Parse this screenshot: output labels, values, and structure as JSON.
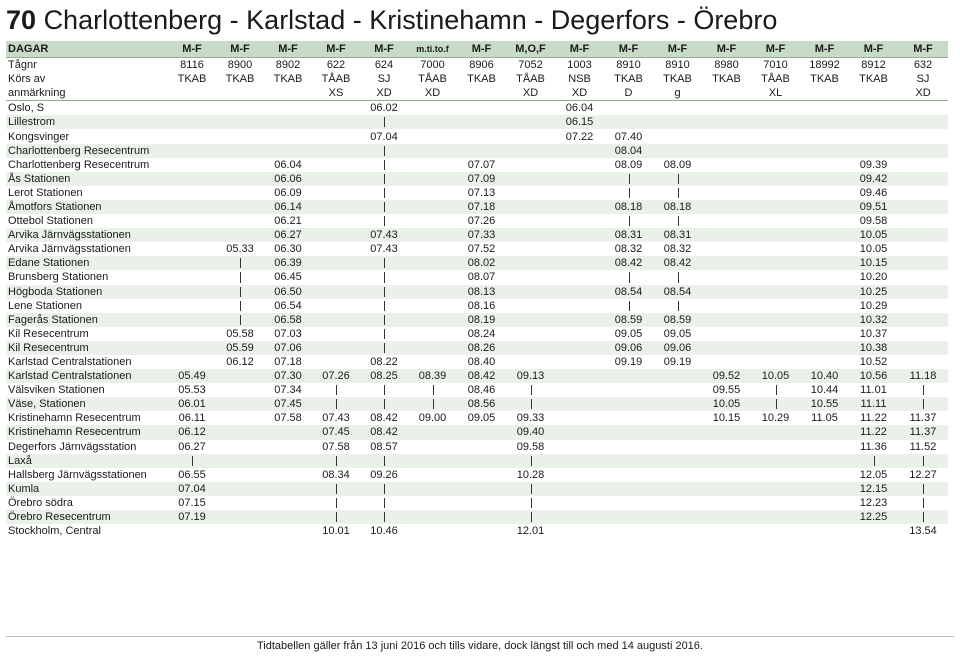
{
  "title": {
    "number": "70",
    "route": "Charlottenberg - Karlstad - Kristinehamn - Degerfors - Örebro"
  },
  "header": {
    "days_label": "DAGAR",
    "days": [
      "M-F",
      "M-F",
      "M-F",
      "M-F",
      "M-F",
      "m.ti.to.f",
      "M-F",
      "M,O,F",
      "M-F",
      "M-F",
      "M-F",
      "M-F",
      "M-F",
      "M-F",
      "M-F",
      "M-F"
    ],
    "train_label": "Tågnr",
    "trains": [
      "8116",
      "8900",
      "8902",
      "622",
      "624",
      "7000",
      "8906",
      "7052",
      "1003",
      "8910",
      "8910",
      "8980",
      "7010",
      "18992",
      "8912",
      "632"
    ],
    "operator_label": "Körs av",
    "operators": [
      "TKAB",
      "TKAB",
      "TKAB",
      "TÅAB",
      "SJ",
      "TÅAB",
      "TKAB",
      "TÅAB",
      "NSB",
      "TKAB",
      "TKAB",
      "TKAB",
      "TÅAB",
      "TKAB",
      "TKAB",
      "SJ"
    ],
    "remark_label": "anmärkning",
    "remarks": [
      "",
      "",
      "",
      "XS",
      "XD",
      "XD",
      "",
      "XD",
      "XD",
      "D",
      "g",
      "",
      "XL",
      "",
      "",
      "XD"
    ]
  },
  "stations": [
    {
      "name": "Oslo, S",
      "times": [
        "",
        "",
        "",
        "",
        "06.02",
        "",
        "",
        "",
        "06.04",
        "",
        "",
        "",
        "",
        "",
        "",
        ""
      ]
    },
    {
      "name": "Lillestrom",
      "times": [
        "",
        "",
        "",
        "",
        "|",
        "",
        "",
        "",
        "06.15",
        "",
        "",
        "",
        "",
        "",
        "",
        ""
      ]
    },
    {
      "name": "Kongsvinger",
      "times": [
        "",
        "",
        "",
        "",
        "07.04",
        "",
        "",
        "",
        "07.22",
        "07.40",
        "",
        "",
        "",
        "",
        "",
        ""
      ]
    },
    {
      "name": "Charlottenberg Resecentrum",
      "times": [
        "",
        "",
        "",
        "",
        "|",
        "",
        "",
        "",
        "",
        "08.04",
        "",
        "",
        "",
        "",
        "",
        ""
      ]
    },
    {
      "name": "Charlottenberg Resecentrum",
      "times": [
        "",
        "",
        "06.04",
        "",
        "|",
        "",
        "07.07",
        "",
        "",
        "08.09",
        "08.09",
        "",
        "",
        "",
        "09.39",
        ""
      ]
    },
    {
      "name": "Ås Stationen",
      "times": [
        "",
        "",
        "06.06",
        "",
        "|",
        "",
        "07.09",
        "",
        "",
        "|",
        "|",
        "",
        "",
        "",
        "09.42",
        ""
      ]
    },
    {
      "name": "Lerot Stationen",
      "times": [
        "",
        "",
        "06.09",
        "",
        "|",
        "",
        "07.13",
        "",
        "",
        "|",
        "|",
        "",
        "",
        "",
        "09.46",
        ""
      ]
    },
    {
      "name": "Åmotfors Stationen",
      "times": [
        "",
        "",
        "06.14",
        "",
        "|",
        "",
        "07.18",
        "",
        "",
        "08.18",
        "08.18",
        "",
        "",
        "",
        "09.51",
        ""
      ]
    },
    {
      "name": "Ottebol Stationen",
      "times": [
        "",
        "",
        "06.21",
        "",
        "|",
        "",
        "07.26",
        "",
        "",
        "|",
        "|",
        "",
        "",
        "",
        "09.58",
        ""
      ]
    },
    {
      "name": "Arvika Järnvägsstationen",
      "times": [
        "",
        "",
        "06.27",
        "",
        "07.43",
        "",
        "07.33",
        "",
        "",
        "08.31",
        "08.31",
        "",
        "",
        "",
        "10.05",
        ""
      ]
    },
    {
      "name": "Arvika Järnvägsstationen",
      "times": [
        "",
        "05.33",
        "06.30",
        "",
        "07.43",
        "",
        "07.52",
        "",
        "",
        "08.32",
        "08.32",
        "",
        "",
        "",
        "10.05",
        ""
      ]
    },
    {
      "name": "Edane Stationen",
      "times": [
        "",
        "|",
        "06.39",
        "",
        "|",
        "",
        "08.02",
        "",
        "",
        "08.42",
        "08.42",
        "",
        "",
        "",
        "10.15",
        ""
      ]
    },
    {
      "name": "Brunsberg Stationen",
      "times": [
        "",
        "|",
        "06.45",
        "",
        "|",
        "",
        "08.07",
        "",
        "",
        "|",
        "|",
        "",
        "",
        "",
        "10.20",
        ""
      ]
    },
    {
      "name": "Högboda Stationen",
      "times": [
        "",
        "|",
        "06.50",
        "",
        "|",
        "",
        "08.13",
        "",
        "",
        "08.54",
        "08.54",
        "",
        "",
        "",
        "10.25",
        ""
      ]
    },
    {
      "name": "Lene Stationen",
      "times": [
        "",
        "|",
        "06.54",
        "",
        "|",
        "",
        "08.16",
        "",
        "",
        "|",
        "|",
        "",
        "",
        "",
        "10.29",
        ""
      ]
    },
    {
      "name": "Fagerås Stationen",
      "times": [
        "",
        "|",
        "06.58",
        "",
        "|",
        "",
        "08.19",
        "",
        "",
        "08.59",
        "08.59",
        "",
        "",
        "",
        "10.32",
        ""
      ]
    },
    {
      "name": "Kil Resecentrum",
      "times": [
        "",
        "05.58",
        "07.03",
        "",
        "|",
        "",
        "08.24",
        "",
        "",
        "09.05",
        "09.05",
        "",
        "",
        "",
        "10.37",
        ""
      ]
    },
    {
      "name": "Kil Resecentrum",
      "times": [
        "",
        "05.59",
        "07.06",
        "",
        "|",
        "",
        "08.26",
        "",
        "",
        "09.06",
        "09.06",
        "",
        "",
        "",
        "10.38",
        ""
      ]
    },
    {
      "name": "Karlstad Centralstationen",
      "times": [
        "",
        "06.12",
        "07.18",
        "",
        "08.22",
        "",
        "08.40",
        "",
        "",
        "09.19",
        "09.19",
        "",
        "",
        "",
        "10.52",
        ""
      ]
    },
    {
      "name": "Karlstad Centralstationen",
      "times": [
        "05.49",
        "",
        "07.30",
        "07.26",
        "08.25",
        "08.39",
        "08.42",
        "09.13",
        "",
        "",
        "",
        "09.52",
        "10.05",
        "10.40",
        "10.56",
        "11.18"
      ]
    },
    {
      "name": "Välsviken Stationen",
      "times": [
        "05.53",
        "",
        "07.34",
        "|",
        "|",
        "|",
        "08.46",
        "|",
        "",
        "",
        "",
        "09.55",
        "|",
        "10.44",
        "11.01",
        "|"
      ]
    },
    {
      "name": "Väse, Stationen",
      "times": [
        "06.01",
        "",
        "07.45",
        "|",
        "|",
        "|",
        "08.56",
        "|",
        "",
        "",
        "",
        "10.05",
        "|",
        "10.55",
        "11.11",
        "|"
      ]
    },
    {
      "name": "Kristinehamn Resecentrum",
      "times": [
        "06.11",
        "",
        "07.58",
        "07.43",
        "08.42",
        "09.00",
        "09.05",
        "09.33",
        "",
        "",
        "",
        "10.15",
        "10.29",
        "11.05",
        "11.22",
        "11.37"
      ]
    },
    {
      "name": "Kristinehamn Resecentrum",
      "times": [
        "06.12",
        "",
        "",
        "07.45",
        "08.42",
        "",
        "",
        "09.40",
        "",
        "",
        "",
        "",
        "",
        "",
        "11.22",
        "11.37"
      ]
    },
    {
      "name": "Degerfors Järnvägsstation",
      "times": [
        "06.27",
        "",
        "",
        "07.58",
        "08.57",
        "",
        "",
        "09.58",
        "",
        "",
        "",
        "",
        "",
        "",
        "11.36",
        "11.52"
      ]
    },
    {
      "name": "Laxå",
      "times": [
        "|",
        "",
        "",
        "|",
        "|",
        "",
        "",
        "|",
        "",
        "",
        "",
        "",
        "",
        "",
        "|",
        "|"
      ]
    },
    {
      "name": "Hallsberg Järnvägsstationen",
      "times": [
        "06.55",
        "",
        "",
        "08.34",
        "09.26",
        "",
        "",
        "10.28",
        "",
        "",
        "",
        "",
        "",
        "",
        "12.05",
        "12.27"
      ]
    },
    {
      "name": "Kumla",
      "times": [
        "07.04",
        "",
        "",
        "|",
        "|",
        "",
        "",
        "|",
        "",
        "",
        "",
        "",
        "",
        "",
        "12.15",
        "|"
      ]
    },
    {
      "name": "Örebro södra",
      "times": [
        "07.15",
        "",
        "",
        "|",
        "|",
        "",
        "",
        "|",
        "",
        "",
        "",
        "",
        "",
        "",
        "12.23",
        "|"
      ]
    },
    {
      "name": "Örebro Resecentrum",
      "times": [
        "07.19",
        "",
        "",
        "|",
        "|",
        "",
        "",
        "|",
        "",
        "",
        "",
        "",
        "",
        "",
        "12.25",
        "|"
      ]
    },
    {
      "name": "Stockholm, Central",
      "times": [
        "",
        "",
        "",
        "10.01",
        "10.46",
        "",
        "",
        "12.01",
        "",
        "",
        "",
        "",
        "",
        "",
        "",
        "13.54"
      ]
    }
  ],
  "footer": "Tidtabellen gäller från 13 juni 2016 och tills vidare, dock längst till och med 14 augusti 2016."
}
